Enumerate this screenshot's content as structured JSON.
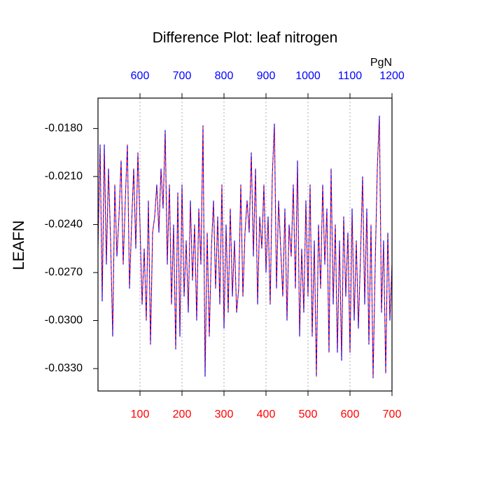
{
  "chart_data": {
    "type": "line",
    "title": "Difference Plot: leaf nitrogen",
    "ylabel": "LEAFN",
    "x2label": "PgN",
    "xlim": [
      0,
      700
    ],
    "xticks": [
      100,
      200,
      300,
      400,
      500,
      600,
      700
    ],
    "xtick_color": "#ff0000",
    "x2lim": [
      500,
      1200
    ],
    "x2ticks": [
      600,
      700,
      800,
      900,
      1000,
      1100,
      1200
    ],
    "x2tick_color": "#0000ff",
    "ylim": [
      -0.0344,
      -0.0161
    ],
    "yticks": [
      {
        "value": -0.033,
        "label": "-0.0330"
      },
      {
        "value": -0.03,
        "label": "-0.0300"
      },
      {
        "value": -0.027,
        "label": "-0.0270"
      },
      {
        "value": -0.024,
        "label": "-0.0240"
      },
      {
        "value": -0.021,
        "label": "-0.0210"
      },
      {
        "value": -0.018,
        "label": "-0.0180"
      }
    ],
    "grid": true,
    "x": [
      0,
      5,
      10,
      15,
      20,
      25,
      30,
      35,
      40,
      45,
      50,
      55,
      60,
      65,
      70,
      75,
      80,
      85,
      90,
      95,
      100,
      105,
      110,
      115,
      120,
      125,
      130,
      135,
      140,
      145,
      150,
      155,
      160,
      165,
      170,
      175,
      180,
      185,
      190,
      195,
      200,
      205,
      210,
      215,
      220,
      225,
      230,
      235,
      240,
      245,
      250,
      255,
      260,
      265,
      270,
      275,
      280,
      285,
      290,
      295,
      300,
      305,
      310,
      315,
      320,
      325,
      330,
      335,
      340,
      345,
      350,
      355,
      360,
      365,
      370,
      375,
      380,
      385,
      390,
      395,
      400,
      405,
      410,
      415,
      420,
      425,
      430,
      435,
      440,
      445,
      450,
      455,
      460,
      465,
      470,
      475,
      480,
      485,
      490,
      495,
      500,
      505,
      510,
      515,
      520,
      525,
      530,
      535,
      540,
      545,
      550,
      555,
      560,
      565,
      570,
      575,
      580,
      585,
      590,
      595,
      600,
      605,
      610,
      615,
      620,
      625,
      630,
      635,
      640,
      645,
      650,
      655,
      660,
      665,
      670,
      675,
      680,
      685,
      690,
      695,
      700
    ],
    "series": [
      {
        "color": "#ff0000",
        "dash_offset": 0,
        "values": [
          -0.0255,
          -0.019,
          -0.0288,
          -0.019,
          -0.0265,
          -0.0205,
          -0.025,
          -0.031,
          -0.0215,
          -0.026,
          -0.0235,
          -0.02,
          -0.0265,
          -0.0225,
          -0.019,
          -0.028,
          -0.024,
          -0.0205,
          -0.0255,
          -0.0195,
          -0.024,
          -0.029,
          -0.0255,
          -0.03,
          -0.0225,
          -0.0315,
          -0.0245,
          -0.0235,
          -0.0215,
          -0.0245,
          -0.0205,
          -0.023,
          -0.0181,
          -0.0265,
          -0.0215,
          -0.029,
          -0.024,
          -0.0318,
          -0.022,
          -0.031,
          -0.0215,
          -0.0285,
          -0.025,
          -0.0295,
          -0.0225,
          -0.0275,
          -0.024,
          -0.03,
          -0.023,
          -0.0265,
          -0.0178,
          -0.0335,
          -0.0245,
          -0.031,
          -0.0255,
          -0.0225,
          -0.028,
          -0.0235,
          -0.029,
          -0.0215,
          -0.0305,
          -0.024,
          -0.0295,
          -0.023,
          -0.0285,
          -0.025,
          -0.0295,
          -0.028,
          -0.0215,
          -0.0285,
          -0.0245,
          -0.0225,
          -0.0245,
          -0.0195,
          -0.026,
          -0.0205,
          -0.029,
          -0.0235,
          -0.0255,
          -0.0215,
          -0.027,
          -0.0235,
          -0.029,
          -0.021,
          -0.0177,
          -0.028,
          -0.0225,
          -0.0255,
          -0.0285,
          -0.023,
          -0.03,
          -0.024,
          -0.026,
          -0.0215,
          -0.028,
          -0.02,
          -0.031,
          -0.0255,
          -0.0295,
          -0.0225,
          -0.0285,
          -0.0215,
          -0.031,
          -0.025,
          -0.0335,
          -0.024,
          -0.028,
          -0.0215,
          -0.0265,
          -0.023,
          -0.032,
          -0.0205,
          -0.029,
          -0.024,
          -0.032,
          -0.025,
          -0.0325,
          -0.0235,
          -0.0285,
          -0.0245,
          -0.032,
          -0.023,
          -0.03,
          -0.025,
          -0.0305,
          -0.026,
          -0.021,
          -0.029,
          -0.023,
          -0.0315,
          -0.024,
          -0.0336,
          -0.0265,
          -0.0205,
          -0.0172,
          -0.0295,
          -0.025,
          -0.0333,
          -0.0245,
          -0.03,
          -0.0265
        ]
      },
      {
        "color": "#0000ff",
        "dash_offset": 4,
        "values": [
          -0.0255,
          -0.019,
          -0.0288,
          -0.019,
          -0.0265,
          -0.0205,
          -0.025,
          -0.031,
          -0.0215,
          -0.026,
          -0.0235,
          -0.02,
          -0.0265,
          -0.0225,
          -0.019,
          -0.028,
          -0.024,
          -0.0205,
          -0.0255,
          -0.0195,
          -0.024,
          -0.029,
          -0.0255,
          -0.03,
          -0.0225,
          -0.0315,
          -0.0245,
          -0.0235,
          -0.0215,
          -0.0245,
          -0.0205,
          -0.023,
          -0.0181,
          -0.0265,
          -0.0215,
          -0.029,
          -0.024,
          -0.0318,
          -0.022,
          -0.031,
          -0.0215,
          -0.0285,
          -0.025,
          -0.0295,
          -0.0225,
          -0.0275,
          -0.024,
          -0.03,
          -0.023,
          -0.0265,
          -0.0178,
          -0.0335,
          -0.0245,
          -0.031,
          -0.0255,
          -0.0225,
          -0.028,
          -0.0235,
          -0.029,
          -0.0215,
          -0.0305,
          -0.024,
          -0.0295,
          -0.023,
          -0.0285,
          -0.025,
          -0.0295,
          -0.028,
          -0.0215,
          -0.0285,
          -0.0245,
          -0.0225,
          -0.0245,
          -0.0195,
          -0.026,
          -0.0205,
          -0.029,
          -0.0235,
          -0.0255,
          -0.0215,
          -0.027,
          -0.0235,
          -0.029,
          -0.021,
          -0.0177,
          -0.028,
          -0.0225,
          -0.0255,
          -0.0285,
          -0.023,
          -0.03,
          -0.024,
          -0.026,
          -0.0215,
          -0.028,
          -0.02,
          -0.031,
          -0.0255,
          -0.0295,
          -0.0225,
          -0.0285,
          -0.0215,
          -0.031,
          -0.025,
          -0.0335,
          -0.024,
          -0.028,
          -0.0215,
          -0.0265,
          -0.023,
          -0.032,
          -0.0205,
          -0.029,
          -0.024,
          -0.032,
          -0.025,
          -0.0325,
          -0.0235,
          -0.0285,
          -0.0245,
          -0.032,
          -0.023,
          -0.03,
          -0.025,
          -0.0305,
          -0.026,
          -0.021,
          -0.029,
          -0.023,
          -0.0315,
          -0.024,
          -0.0336,
          -0.0265,
          -0.0205,
          -0.0172,
          -0.0295,
          -0.025,
          -0.0333,
          -0.0245,
          -0.03,
          -0.0265
        ]
      }
    ]
  }
}
